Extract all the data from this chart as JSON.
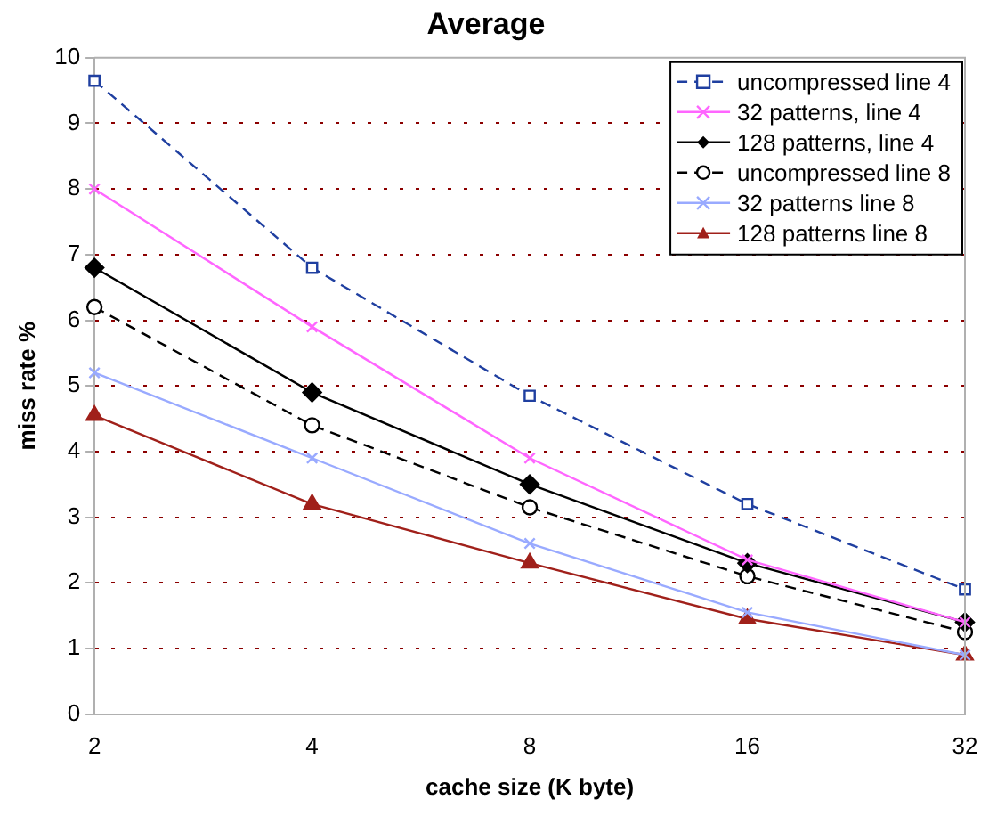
{
  "chart_data": {
    "type": "line",
    "title": "Average",
    "xlabel": "cache size (K byte)",
    "ylabel": "miss rate %",
    "categories": [
      "2",
      "4",
      "8",
      "16",
      "32"
    ],
    "ylim": [
      0,
      10
    ],
    "yticks": [
      0,
      1,
      2,
      3,
      4,
      5,
      6,
      7,
      8,
      9,
      10
    ],
    "grid": "y",
    "legend": "top right",
    "series": [
      {
        "name": "uncompressed line 4",
        "color": "#1f3fa0",
        "marker": "square",
        "line_style": "dashed",
        "values": [
          9.65,
          6.8,
          4.85,
          3.2,
          1.9
        ]
      },
      {
        "name": "32 patterns, line 4",
        "color": "#ff66ff",
        "marker": "cross",
        "line_style": "solid",
        "values": [
          8.0,
          5.9,
          3.9,
          2.35,
          1.4
        ]
      },
      {
        "name": "128 patterns, line 4",
        "color": "#000000",
        "marker": "diamond",
        "line_style": "solid",
        "values": [
          6.8,
          4.9,
          3.5,
          2.3,
          1.4
        ]
      },
      {
        "name": "uncompressed line 8",
        "color": "#000000",
        "marker": "circle",
        "line_style": "dashed",
        "values": [
          6.2,
          4.4,
          3.15,
          2.1,
          1.25
        ]
      },
      {
        "name": "32 patterns line 8",
        "color": "#99aaff",
        "marker": "cross",
        "line_style": "solid",
        "values": [
          5.2,
          3.9,
          2.6,
          1.55,
          0.9
        ]
      },
      {
        "name": "128 patterns line 8",
        "color": "#a0201a",
        "marker": "triangle",
        "line_style": "solid",
        "values": [
          4.55,
          3.2,
          2.3,
          1.45,
          0.9
        ]
      }
    ]
  }
}
